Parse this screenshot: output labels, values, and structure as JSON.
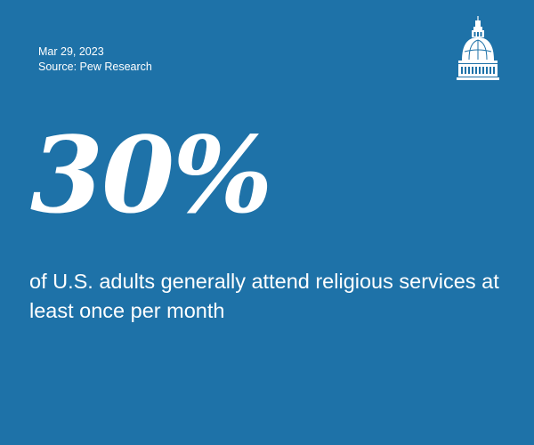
{
  "meta": {
    "date": "Mar 29, 2023",
    "source": "Source: Pew Research"
  },
  "stat": {
    "value": "30%",
    "description": "of U.S. adults generally attend religious services at least once per month"
  },
  "logo": {
    "icon": "capitol-dome-icon"
  },
  "colors": {
    "background": "#1e72a8",
    "text": "#ffffff"
  }
}
